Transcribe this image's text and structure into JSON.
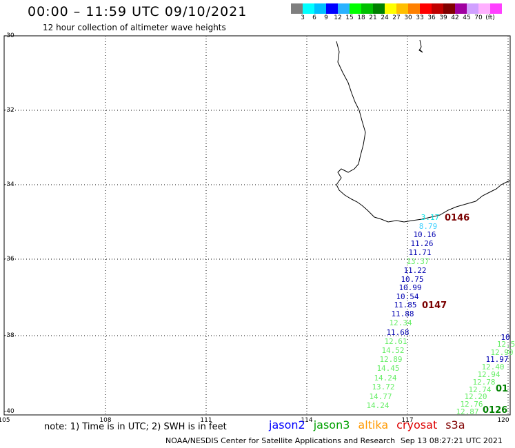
{
  "header": {
    "title": "00:00 – 11:59 UTC 09/10/2021",
    "subtitle": "12 hour collection of altimeter wave heights"
  },
  "colorbar": {
    "colors": [
      "#7f7f7f",
      "#00ffff",
      "#00bfff",
      "#0000ff",
      "#2ab2ff",
      "#00ff00",
      "#00c000",
      "#008000",
      "#ffff00",
      "#ffbf00",
      "#ff8000",
      "#ff0000",
      "#c00000",
      "#800000",
      "#a000a0",
      "#d0a0ff",
      "#ffb0ff",
      "#ff40ff"
    ],
    "labels": [
      "3",
      "6",
      "9",
      "12",
      "15",
      "18",
      "21",
      "24",
      "27",
      "30",
      "33",
      "36",
      "39",
      "42",
      "45",
      "70",
      "(ft)"
    ]
  },
  "axes": {
    "lat_labels": [
      "-30",
      "-32",
      "-34",
      "-36",
      "-38",
      "-40"
    ],
    "lon_labels": [
      "105",
      "108",
      "111",
      "114",
      "117",
      "120"
    ]
  },
  "tracks": [
    {
      "label": "0146",
      "color": "#7a0000"
    },
    {
      "label": "0147",
      "color": "#7a0000"
    },
    {
      "label": "0126",
      "color": "#008000"
    },
    {
      "label": "01",
      "color": "#008000"
    }
  ],
  "points": [
    {
      "v": "3.17",
      "c": "#00e0e0"
    },
    {
      "v": "8.79",
      "c": "#40d0ff"
    },
    {
      "v": "10.16",
      "c": "#0000b0"
    },
    {
      "v": "11.26",
      "c": "#0000b0"
    },
    {
      "v": "11.71",
      "c": "#0000b0"
    },
    {
      "v": "13.37",
      "c": "#66ee66"
    },
    {
      "v": "11.22",
      "c": "#0000b0"
    },
    {
      "v": "10.75",
      "c": "#0000b0"
    },
    {
      "v": "10.99",
      "c": "#0000b0"
    },
    {
      "v": "10.54",
      "c": "#0000b0"
    },
    {
      "v": "11.85",
      "c": "#0000b0"
    },
    {
      "v": "11.88",
      "c": "#0000b0"
    },
    {
      "v": "12.34",
      "c": "#66ee66"
    },
    {
      "v": "11.68",
      "c": "#0000b0"
    },
    {
      "v": "12.61",
      "c": "#66ee66"
    },
    {
      "v": "14.52",
      "c": "#66ee66"
    },
    {
      "v": "12.89",
      "c": "#66ee66"
    },
    {
      "v": "14.45",
      "c": "#66ee66"
    },
    {
      "v": "14.24",
      "c": "#66ee66"
    },
    {
      "v": "13.72",
      "c": "#66ee66"
    },
    {
      "v": "14.77",
      "c": "#66ee66"
    },
    {
      "v": "14.24",
      "c": "#66ee66"
    },
    {
      "v": "10",
      "c": "#0000b0"
    },
    {
      "v": "12.5",
      "c": "#66ee66"
    },
    {
      "v": "12.90",
      "c": "#66ee66"
    },
    {
      "v": "11.97",
      "c": "#0000b0"
    },
    {
      "v": "12.40",
      "c": "#66ee66"
    },
    {
      "v": "12.94",
      "c": "#66ee66"
    },
    {
      "v": "12.78",
      "c": "#66ee66"
    },
    {
      "v": "12.74",
      "c": "#66ee66"
    },
    {
      "v": "12.20",
      "c": "#66ee66"
    },
    {
      "v": "12.76",
      "c": "#66ee66"
    },
    {
      "v": "12.87",
      "c": "#66ee66"
    }
  ],
  "footer": {
    "note": "note: 1) Time is in UTC; 2) SWH is in feet",
    "legend": [
      {
        "name": "jason2",
        "color": "#0000ff"
      },
      {
        "name": "jason3",
        "color": "#00a000"
      },
      {
        "name": "altika",
        "color": "#ff9900"
      },
      {
        "name": "cryosat",
        "color": "#dd0000"
      },
      {
        "name": "s3a",
        "color": "#800000"
      }
    ],
    "credit": "NOAA/NESDIS Center for Satellite Applications and Research",
    "timestamp": "Sep 13 08:27:21 UTC 2021"
  }
}
